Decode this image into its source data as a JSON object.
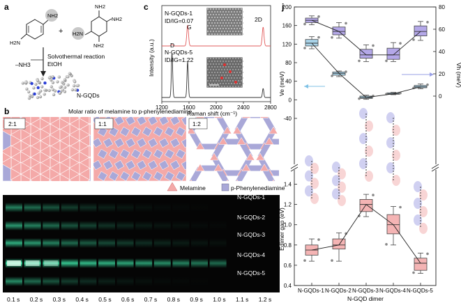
{
  "panel_a": {
    "letter": "a",
    "reactant_nh2": "NH2",
    "reactant_nh2_left": "H2N",
    "triazine_top": "NH2",
    "triazine_left": "H2N",
    "triazine_right": "NH2",
    "triazine_bottom": "NH2",
    "plus": "+",
    "condition_1": "Solvothermal reaction",
    "condition_2": "EtOH",
    "byproduct": "–NH3",
    "product": "N-GQDs"
  },
  "panel_b": {
    "letter": "b",
    "title": "Molar ratio of melamine to p-phenylenediamine",
    "ratios": [
      "2:1",
      "1:1",
      "1:2"
    ],
    "legend_melamine": "Melamine",
    "legend_ppd": "p-Phenylenediamine",
    "colors": {
      "melamine": "#f4a9a8",
      "ppd": "#a9a8d8"
    }
  },
  "panel_c": {
    "letter": "c",
    "ylabel": "Intensity (a.u.)",
    "xlabel": "Raman shift (cm⁻¹)",
    "xticks": [
      "1200",
      "1600",
      "2000",
      "2400",
      "2800"
    ],
    "label_top": "N-GQDs-1",
    "ratio_top": "ID/IG=0.07",
    "label_bottom": "N-GQDs-5",
    "ratio_bottom": "ID/IG=1.22",
    "peak_d": "D",
    "peak_g": "G",
    "peak_2d": "2D"
  },
  "panel_d": {
    "letter": "d",
    "rows": [
      "N-GQDs-1",
      "N-GQDs-2",
      "N-GQDs-3",
      "N-GQDs-4",
      "N-GQDs-5"
    ],
    "times": [
      "0.1 s",
      "0.2 s",
      "0.3 s",
      "0.4 s",
      "0.5 s",
      "0.6 s",
      "0.7 s",
      "0.8 s",
      "0.9 s",
      "1.0 s",
      "1.1 s",
      "1.2 s"
    ],
    "intensity": [
      [
        0.55,
        0.45,
        0.35,
        0.25,
        0.18,
        0.12,
        0.08,
        0.05,
        0.03,
        0.02,
        0.01,
        0.0
      ],
      [
        0.65,
        0.55,
        0.45,
        0.35,
        0.28,
        0.2,
        0.15,
        0.1,
        0.07,
        0.05,
        0.03,
        0.02
      ],
      [
        0.75,
        0.65,
        0.55,
        0.45,
        0.38,
        0.3,
        0.24,
        0.18,
        0.14,
        0.1,
        0.07,
        0.05
      ],
      [
        1.0,
        0.95,
        0.9,
        0.85,
        0.8,
        0.75,
        0.7,
        0.65,
        0.6,
        0.55,
        0.5,
        0.45
      ],
      [
        0.6,
        0.45,
        0.35,
        0.25,
        0.18,
        0.12,
        0.08,
        0.05,
        0.03,
        0.02,
        0.01,
        0.0
      ]
    ]
  },
  "panel_j": {
    "letter": "j",
    "left_label_top": "Ve (meV)",
    "right_label": "Vh (meV)",
    "left_label_bottom": "Edimer gap (eV)",
    "xlabel": "N-GQD dimer",
    "categories": [
      "N-GQDs-1",
      "N-GQDs-2",
      "N-GQDs-3",
      "N-GQDs-4",
      "N-GQDs-5"
    ],
    "left_top_ticks": [
      "200",
      "160",
      "120",
      "80",
      "40",
      "0",
      "-40"
    ],
    "right_ticks": [
      "80",
      "60",
      "40",
      "20",
      "0"
    ],
    "left_bottom_ticks": [
      "1.4",
      "1.2",
      "1.0",
      "0.8",
      "0.6",
      "0.4"
    ]
  },
  "chart_data": [
    {
      "type": "line",
      "title": "",
      "xlabel": "Raman shift (cm⁻¹)",
      "ylabel": "Intensity (a.u.)",
      "xlim": [
        1200,
        2800
      ],
      "series": [
        {
          "name": "N-GQDs-1",
          "peaks": [
            {
              "x": 1350,
              "h": 0.07
            },
            {
              "x": 1580,
              "h": 1.0
            },
            {
              "x": 2690,
              "h": 0.9
            }
          ]
        },
        {
          "name": "N-GQDs-5",
          "peaks": [
            {
              "x": 1350,
              "h": 1.22
            },
            {
              "x": 1580,
              "h": 1.0
            },
            {
              "x": 2690,
              "h": 0.25
            }
          ]
        }
      ]
    },
    {
      "type": "box",
      "title": "",
      "categories": [
        "N-GQDs-1",
        "N-GQDs-2",
        "N-GQDs-3",
        "N-GQDs-4",
        "N-GQDs-5"
      ],
      "ylim_left_top": [
        -40,
        200
      ],
      "ylim_right": [
        0,
        80
      ],
      "ylim_left_bottom": [
        0.4,
        1.5
      ],
      "series": [
        {
          "name": "Ve",
          "axis": "right",
          "color": "#b4a8e8",
          "median": [
            68,
            58,
            37,
            37,
            58
          ],
          "q1": [
            66,
            55,
            34,
            33,
            54
          ],
          "q3": [
            70,
            62,
            42,
            43,
            63
          ],
          "min": [
            64,
            52,
            31,
            31,
            50
          ],
          "max": [
            72,
            66,
            46,
            48,
            67
          ]
        },
        {
          "name": "Vh",
          "axis": "left",
          "color": "#a9d3e8",
          "median": [
            122,
            57,
            5,
            13,
            28
          ],
          "q1": [
            116,
            53,
            3,
            12,
            26
          ],
          "q3": [
            130,
            60,
            8,
            15,
            31
          ],
          "min": [
            110,
            50,
            1,
            11,
            24
          ],
          "max": [
            136,
            62,
            10,
            16,
            34
          ]
        },
        {
          "name": "Edimer gap",
          "axis": "left-bottom",
          "color": "#f4b4b4",
          "median": [
            0.75,
            0.8,
            1.2,
            1.0,
            0.62
          ],
          "q1": [
            0.7,
            0.76,
            1.13,
            0.91,
            0.55
          ],
          "q3": [
            0.8,
            0.86,
            1.25,
            1.1,
            0.67
          ],
          "min": [
            0.64,
            0.64,
            1.08,
            0.8,
            0.52
          ],
          "max": [
            0.86,
            0.92,
            1.3,
            1.18,
            0.72
          ]
        }
      ]
    }
  ]
}
